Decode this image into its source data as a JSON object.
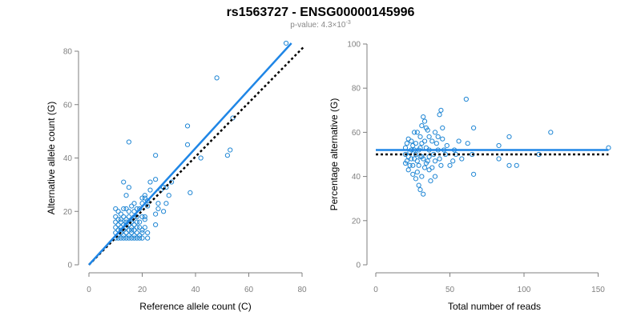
{
  "title": "rs1563727 - ENSG00000145996",
  "subtitle": {
    "prefix": "p-value: ",
    "mantissa": "4.3",
    "times": "×",
    "base": "10",
    "exponent": "-3"
  },
  "colors": {
    "points": "#1f86d4",
    "fit_line": "#1f86e6",
    "reference_line": "#000000",
    "axis": "#7f7f7f"
  },
  "chart_data": [
    {
      "type": "scatter",
      "xlabel": "Reference allele count (C)",
      "ylabel": "Alternative allele count (G)",
      "xlim": [
        0,
        80
      ],
      "ylim": [
        0,
        80
      ],
      "xticks": [
        0,
        20,
        40,
        60,
        80
      ],
      "yticks": [
        0,
        20,
        40,
        60,
        80
      ],
      "lines": {
        "fit": {
          "x": [
            0,
            76
          ],
          "y": [
            0,
            83
          ]
        },
        "reference": {
          "x": [
            0,
            81
          ],
          "y": [
            0,
            82
          ]
        }
      },
      "points": [
        [
          74,
          83
        ],
        [
          48,
          70
        ],
        [
          15,
          46
        ],
        [
          37,
          52
        ],
        [
          25,
          41
        ],
        [
          37,
          45
        ],
        [
          54,
          55
        ],
        [
          52,
          41
        ],
        [
          53,
          43
        ],
        [
          42,
          40
        ],
        [
          31,
          31
        ],
        [
          38,
          27
        ],
        [
          30,
          26
        ],
        [
          29,
          29
        ],
        [
          29,
          23
        ],
        [
          28,
          29
        ],
        [
          25,
          32
        ],
        [
          27,
          28
        ],
        [
          23,
          31
        ],
        [
          23,
          28
        ],
        [
          21,
          26
        ],
        [
          22,
          24
        ],
        [
          20,
          23
        ],
        [
          22,
          22
        ],
        [
          21,
          25
        ],
        [
          20,
          25
        ],
        [
          26,
          23
        ],
        [
          26,
          21
        ],
        [
          28,
          20
        ],
        [
          25,
          19
        ],
        [
          25,
          15
        ],
        [
          17,
          23
        ],
        [
          19,
          21
        ],
        [
          13,
          31
        ],
        [
          15,
          29
        ],
        [
          14,
          26
        ],
        [
          17,
          20
        ],
        [
          16,
          22
        ],
        [
          21,
          18
        ],
        [
          20,
          18
        ],
        [
          10,
          21
        ],
        [
          11,
          20
        ],
        [
          12,
          19
        ],
        [
          13,
          21
        ],
        [
          14,
          21
        ],
        [
          15,
          20
        ],
        [
          18,
          21
        ],
        [
          10,
          18
        ],
        [
          11,
          17
        ],
        [
          12,
          17
        ],
        [
          13,
          18
        ],
        [
          14,
          17
        ],
        [
          15,
          18
        ],
        [
          16,
          17
        ],
        [
          17,
          18
        ],
        [
          10,
          16
        ],
        [
          11,
          15
        ],
        [
          12,
          16
        ],
        [
          13,
          15
        ],
        [
          14,
          16
        ],
        [
          15,
          15
        ],
        [
          16,
          16
        ],
        [
          17,
          15
        ],
        [
          18,
          16
        ],
        [
          10,
          14
        ],
        [
          11,
          13
        ],
        [
          12,
          14
        ],
        [
          13,
          13
        ],
        [
          14,
          14
        ],
        [
          15,
          13
        ],
        [
          16,
          14
        ],
        [
          17,
          13
        ],
        [
          18,
          14
        ],
        [
          19,
          14
        ],
        [
          20,
          13
        ],
        [
          10,
          12
        ],
        [
          11,
          11
        ],
        [
          12,
          12
        ],
        [
          13,
          11
        ],
        [
          14,
          12
        ],
        [
          15,
          11
        ],
        [
          16,
          12
        ],
        [
          17,
          11
        ],
        [
          18,
          12
        ],
        [
          19,
          11
        ],
        [
          20,
          12
        ],
        [
          10,
          10
        ],
        [
          11,
          10
        ],
        [
          12,
          10
        ],
        [
          13,
          10
        ],
        [
          14,
          10
        ],
        [
          15,
          10
        ],
        [
          16,
          10
        ],
        [
          17,
          10
        ],
        [
          18,
          10
        ],
        [
          19,
          10
        ],
        [
          20,
          10
        ],
        [
          22,
          10
        ],
        [
          12,
          13
        ],
        [
          14,
          15
        ],
        [
          16,
          13
        ],
        [
          18,
          18
        ],
        [
          19,
          16
        ],
        [
          21,
          17
        ],
        [
          22,
          12
        ],
        [
          21,
          14
        ]
      ]
    },
    {
      "type": "scatter",
      "xlabel": "Total number of reads",
      "ylabel": "Percentage alternative (G)",
      "xlim": [
        0,
        160
      ],
      "ylim": [
        0,
        100
      ],
      "xticks": [
        0,
        50,
        100,
        150
      ],
      "yticks": [
        0,
        20,
        40,
        60,
        80,
        100
      ],
      "lines": {
        "fit": {
          "x": [
            0,
            157
          ],
          "y": [
            52,
            52
          ]
        },
        "reference": {
          "x": [
            0,
            157
          ],
          "y": [
            50,
            50
          ]
        }
      },
      "points": [
        [
          157,
          53
        ],
        [
          118,
          60
        ],
        [
          90,
          58
        ],
        [
          83,
          54
        ],
        [
          83,
          48
        ],
        [
          95,
          45
        ],
        [
          90,
          45
        ],
        [
          110,
          50
        ],
        [
          66,
          62
        ],
        [
          66,
          41
        ],
        [
          61,
          75
        ],
        [
          56,
          56
        ],
        [
          54,
          50
        ],
        [
          52,
          47
        ],
        [
          50,
          45
        ],
        [
          48,
          54
        ],
        [
          46,
          52
        ],
        [
          44,
          70
        ],
        [
          43,
          68
        ],
        [
          45,
          62
        ],
        [
          45,
          57
        ],
        [
          40,
          60
        ],
        [
          41,
          55
        ],
        [
          42,
          52
        ],
        [
          43,
          48
        ],
        [
          44,
          45
        ],
        [
          38,
          56
        ],
        [
          39,
          50
        ],
        [
          40,
          47
        ],
        [
          37,
          38
        ],
        [
          36,
          43
        ],
        [
          35,
          47
        ],
        [
          36,
          58
        ],
        [
          34,
          62
        ],
        [
          33,
          65
        ],
        [
          32,
          67
        ],
        [
          31,
          63
        ],
        [
          31,
          55
        ],
        [
          30,
          58
        ],
        [
          30,
          49
        ],
        [
          29,
          45
        ],
        [
          28,
          42
        ],
        [
          32,
          32
        ],
        [
          30,
          34
        ],
        [
          29,
          36
        ],
        [
          27,
          39
        ],
        [
          26,
          60
        ],
        [
          26,
          52
        ],
        [
          25,
          54
        ],
        [
          24,
          48
        ],
        [
          24,
          56
        ],
        [
          23,
          51
        ],
        [
          23,
          45
        ],
        [
          22,
          57
        ],
        [
          22,
          43
        ],
        [
          21,
          55
        ],
        [
          21,
          47
        ],
        [
          20,
          50
        ],
        [
          20,
          53
        ],
        [
          20,
          46
        ],
        [
          34,
          53
        ],
        [
          34,
          46
        ],
        [
          36,
          49
        ],
        [
          38,
          44
        ],
        [
          35,
          61
        ],
        [
          33,
          56
        ],
        [
          28,
          60
        ],
        [
          27,
          55
        ],
        [
          26,
          48
        ],
        [
          25,
          45
        ],
        [
          25,
          41
        ],
        [
          27,
          50
        ],
        [
          29,
          52
        ],
        [
          31,
          49
        ],
        [
          33,
          44
        ],
        [
          36,
          52
        ],
        [
          42,
          58
        ],
        [
          47,
          50
        ],
        [
          53,
          52
        ],
        [
          58,
          48
        ],
        [
          62,
          55
        ],
        [
          65,
          50
        ],
        [
          28,
          47
        ],
        [
          30,
          53
        ],
        [
          32,
          48
        ],
        [
          24,
          52
        ],
        [
          22,
          49
        ],
        [
          31,
          40
        ],
        [
          40,
          40
        ]
      ]
    }
  ]
}
